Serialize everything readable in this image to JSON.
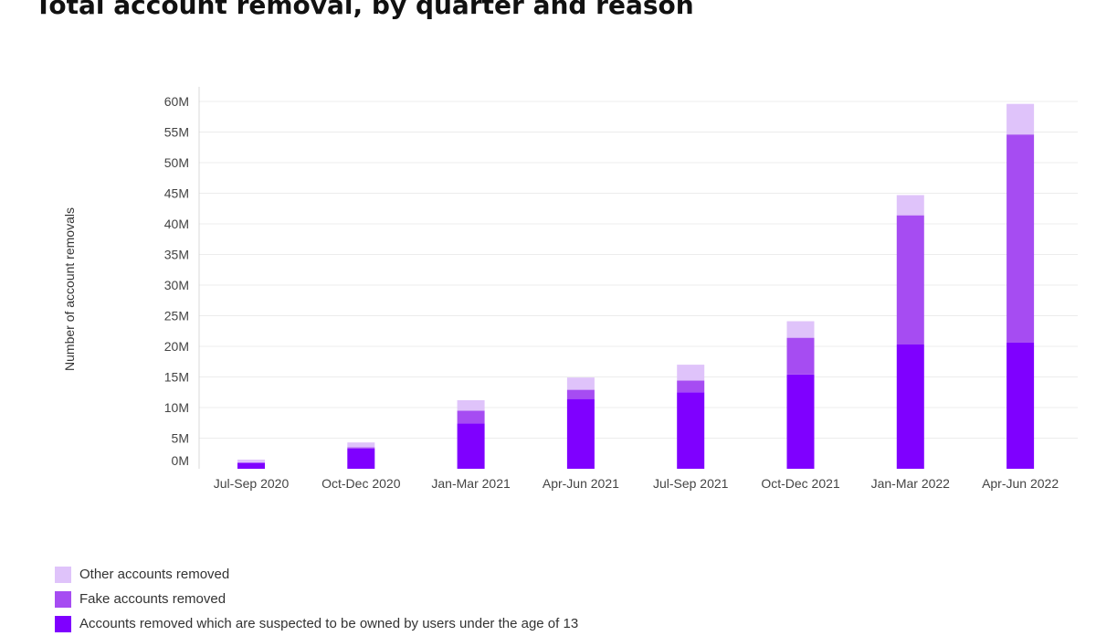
{
  "chart_data": {
    "type": "bar",
    "stacked": true,
    "title": "Total account removal, by quarter and reason",
    "ylabel": "Number of account removals",
    "xlabel": "",
    "ylim": [
      0,
      60000000
    ],
    "yticks": [
      0,
      5000000,
      10000000,
      15000000,
      20000000,
      25000000,
      30000000,
      35000000,
      40000000,
      45000000,
      50000000,
      55000000,
      60000000
    ],
    "ytick_labels": [
      "0M",
      "5M",
      "10M",
      "15M",
      "20M",
      "25M",
      "30M",
      "35M",
      "40M",
      "45M",
      "50M",
      "55M",
      "60M"
    ],
    "categories": [
      "Jul-Sep 2020",
      "Oct-Dec 2020",
      "Jan-Mar 2021",
      "Apr-Jun 2021",
      "Jul-Sep 2021",
      "Oct-Dec 2021",
      "Jan-Mar 2022",
      "Apr-Jun 2022"
    ],
    "grid": true,
    "legend_position": "bottom-left",
    "series": [
      {
        "name": "Accounts removed which are suspected to be owned by users under the age of 13",
        "color": "#7f00ff",
        "values": [
          1000000,
          3300000,
          7400000,
          11400000,
          12500000,
          15400000,
          20300000,
          20600000
        ]
      },
      {
        "name": "Fake accounts removed",
        "color": "#a64cf2",
        "values": [
          0,
          200000,
          2100000,
          1500000,
          1900000,
          6000000,
          21100000,
          34000000
        ]
      },
      {
        "name": "Other accounts removed",
        "color": "#dfc3fa",
        "values": [
          500000,
          800000,
          1700000,
          2000000,
          2600000,
          2700000,
          3300000,
          5000000
        ]
      }
    ]
  },
  "legend": [
    {
      "label": "Other accounts removed",
      "color": "#dfc3fa"
    },
    {
      "label": "Fake accounts removed",
      "color": "#a64cf2"
    },
    {
      "label": "Accounts removed which are suspected to be owned by users under the age of 13",
      "color": "#7f00ff"
    }
  ]
}
